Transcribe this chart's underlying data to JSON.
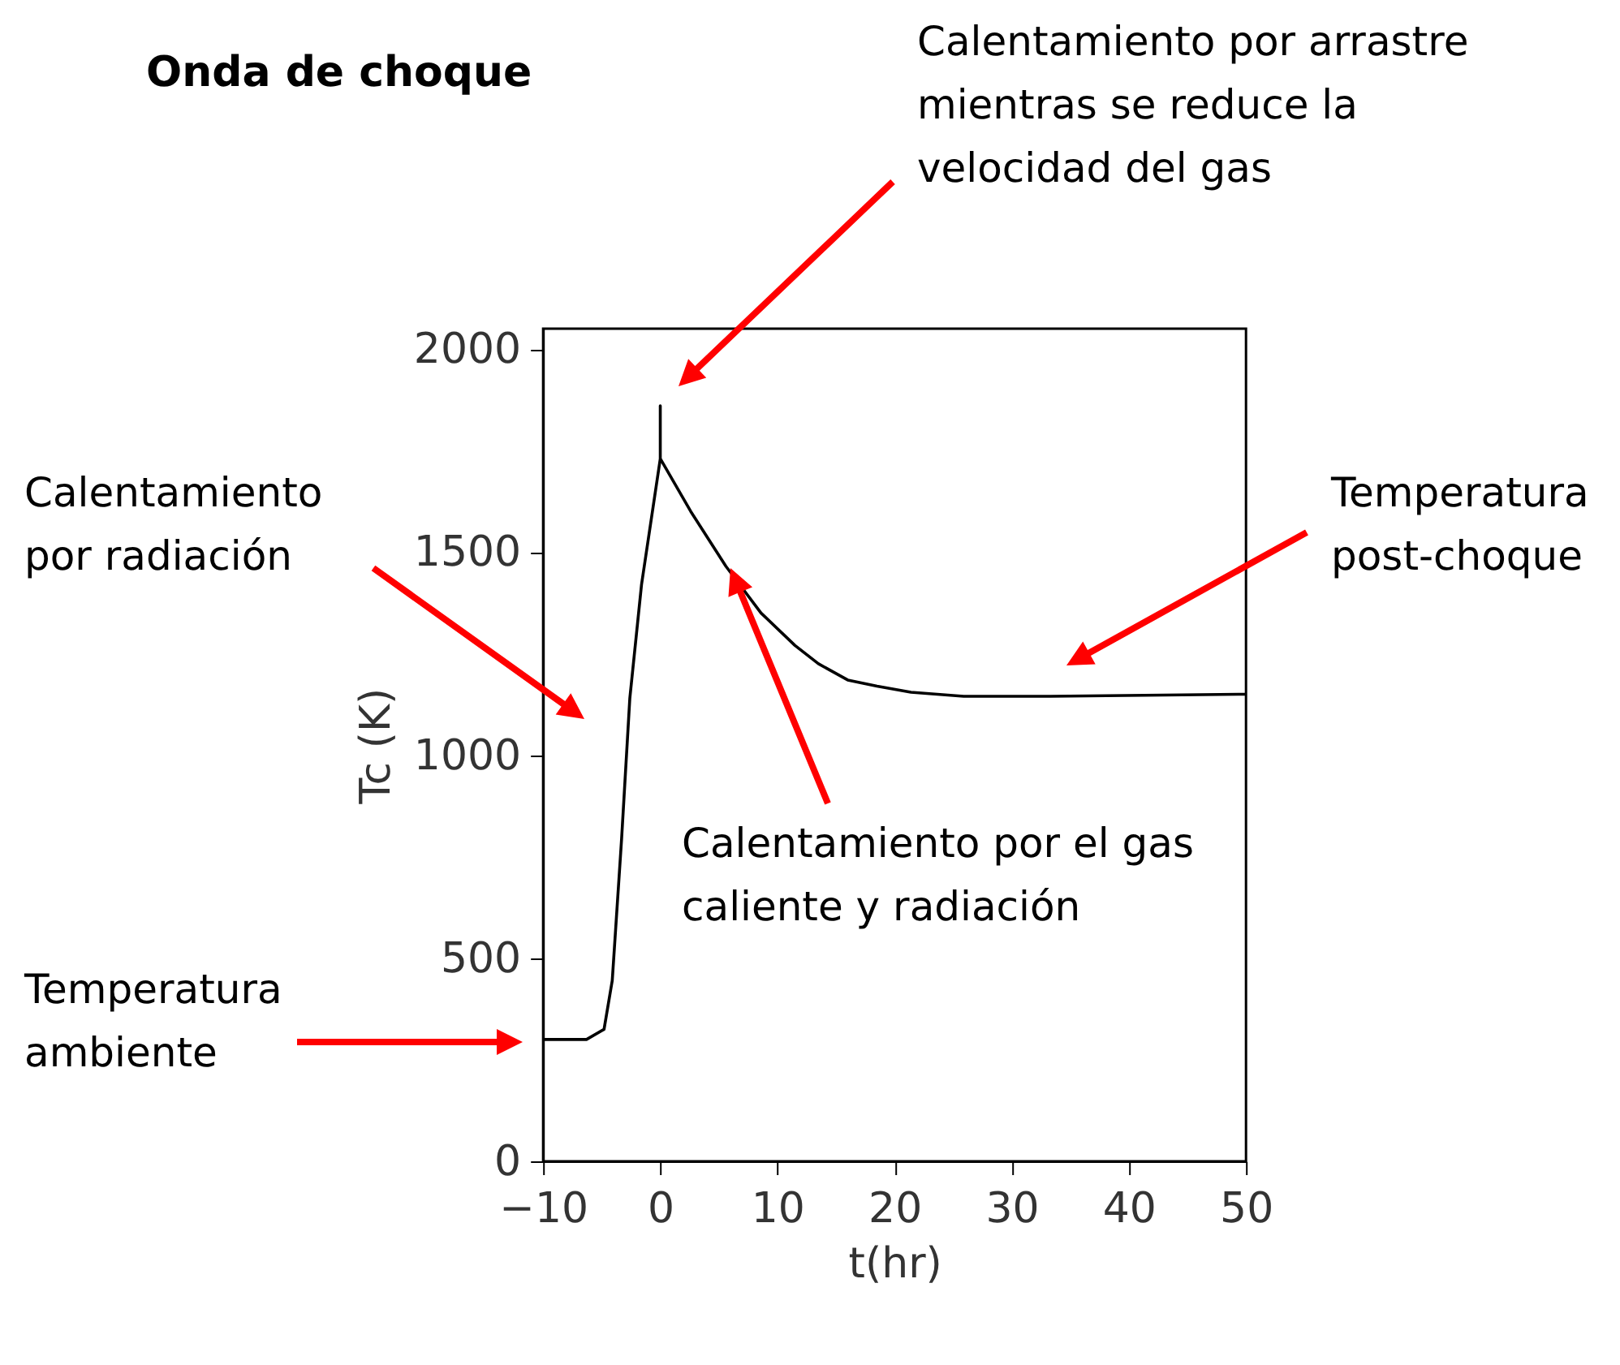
{
  "chart_data": {
    "type": "line",
    "title": "Onda de choque",
    "xlabel": "t(hr)",
    "ylabel": "Tc (K)",
    "series": [
      {
        "color": "#000000",
        "x": [
          -10,
          -6.3,
          -4.8,
          -4.1,
          -3.3,
          -2.6,
          -1.6,
          0,
          0,
          0,
          2.6,
          5.6,
          8.6,
          11.5,
          13.5,
          16,
          18.5,
          21.4,
          25.9,
          33.3,
          50
        ],
        "values": [
          300,
          300,
          325,
          445,
          795,
          1140,
          1420,
          1730,
          1860,
          1730,
          1600,
          1465,
          1350,
          1270,
          1225,
          1185,
          1170,
          1155,
          1145,
          1145,
          1150
        ]
      }
    ],
    "xlim": [
      -10,
      50
    ],
    "xticks": [
      -10,
      0,
      10,
      20,
      30,
      40,
      50
    ],
    "ylim": [
      0,
      2050
    ],
    "yticks": [
      0,
      500,
      1000,
      1500,
      2000
    ],
    "grid": false,
    "line_style": "solid",
    "marker": "none",
    "annotations": [
      "Calentamiento por arrastre mientras se reduce la velocidad del gas",
      "Calentamiento por radiación",
      "Temperatura post-choque",
      "Calentamiento por el gas caliente y radiación",
      "Temperatura ambiente"
    ]
  }
}
